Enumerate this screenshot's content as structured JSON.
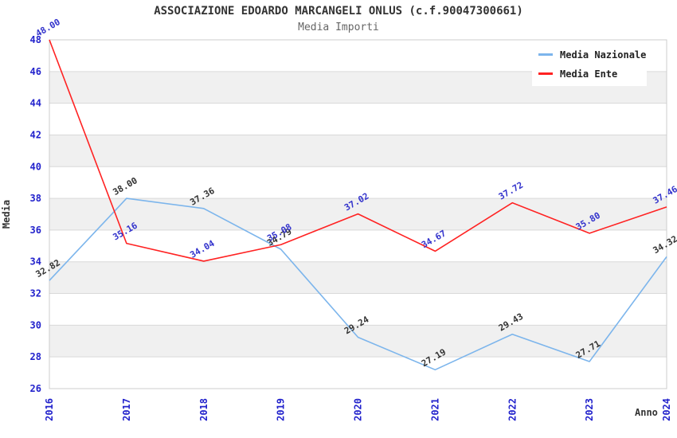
{
  "chart_data": {
    "type": "line",
    "title": "ASSOCIAZIONE EDOARDO MARCANGELI ONLUS (c.f.90047300661)",
    "subtitle": "Media Importi",
    "xlabel": "Anno",
    "ylabel": "Media",
    "categories": [
      "2016",
      "2017",
      "2018",
      "2019",
      "2020",
      "2021",
      "2022",
      "2023",
      "2024"
    ],
    "ylim": [
      26,
      48
    ],
    "ytick_step": 2,
    "grid": "horizontal gridlines with alternating white/gray bands",
    "legend_position": "top-right",
    "series": [
      {
        "name": "Media Nazionale",
        "color": "#7cb5ec",
        "label_color": "#333333",
        "values": [
          32.82,
          38.0,
          37.36,
          34.79,
          29.24,
          27.19,
          29.43,
          27.71,
          34.32
        ]
      },
      {
        "name": "Media Ente",
        "color": "#ff2222",
        "label_color": "#3333cc",
        "values": [
          48.0,
          35.16,
          34.04,
          35.08,
          37.02,
          34.67,
          37.72,
          35.8,
          37.46
        ]
      }
    ],
    "colors": {
      "band": "#f0f0f0",
      "grid": "#d9d9d9",
      "border": "#cccccc",
      "tick_label": "#2222cc",
      "title": "#333333",
      "subtitle": "#666666",
      "background": "#ffffff"
    }
  }
}
